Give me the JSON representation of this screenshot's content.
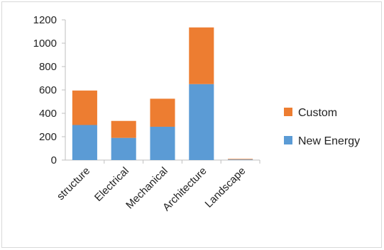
{
  "chart_data": {
    "type": "bar",
    "stacked": true,
    "categories": [
      "structure",
      "Electrical",
      "Mechanical",
      "Architecture",
      "Landscape"
    ],
    "series": [
      {
        "name": "New Energy",
        "color": "#5b9bd5",
        "values": [
          300,
          190,
          285,
          650,
          5
        ]
      },
      {
        "name": "Custom",
        "color": "#ed7d31",
        "values": [
          295,
          145,
          240,
          485,
          5
        ]
      }
    ],
    "ylim": [
      0,
      1200
    ],
    "yticks": [
      "0",
      "200",
      "400",
      "600",
      "800",
      "1000",
      "1200"
    ],
    "ytick_values": [
      0,
      200,
      400,
      600,
      800,
      1000,
      1200
    ],
    "grid": false,
    "legend_position": "right",
    "legend_order": [
      "Custom",
      "New Energy"
    ],
    "title": "",
    "xlabel": "",
    "ylabel": ""
  }
}
